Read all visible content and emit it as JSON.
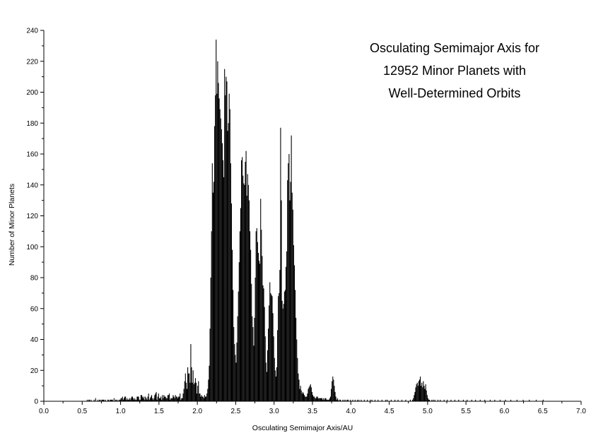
{
  "chart_data": {
    "type": "bar",
    "title_lines": [
      "Osculating Semimajor Axis for",
      "12952 Minor Planets with",
      "Well-Determined Orbits"
    ],
    "xlabel": "Osculating Semimajor Axis/AU",
    "ylabel": "Number of Minor Planets",
    "xlim": [
      0.0,
      7.0
    ],
    "ylim": [
      0,
      240
    ],
    "x_ticks": [
      "0.0",
      "0.5",
      "1.0",
      "1.5",
      "2.0",
      "2.5",
      "3.0",
      "3.5",
      "4.0",
      "4.5",
      "5.0",
      "5.5",
      "6.0",
      "6.5",
      "7.0"
    ],
    "y_ticks": [
      "0",
      "20",
      "40",
      "60",
      "80",
      "100",
      "120",
      "140",
      "160",
      "180",
      "200",
      "220",
      "240"
    ],
    "bin_width": 0.01,
    "x_start": 0.0,
    "counts": [
      0,
      0,
      0,
      0,
      0,
      0,
      0,
      0,
      0,
      0,
      0,
      0,
      0,
      0,
      0,
      0,
      0,
      0,
      0,
      0,
      0,
      0,
      0,
      0,
      0,
      0,
      0,
      0,
      0,
      0,
      0,
      0,
      0,
      0,
      0,
      0,
      0,
      0,
      0,
      0,
      0,
      0,
      0,
      0,
      0,
      0,
      0,
      0,
      0,
      0,
      0,
      0,
      0,
      0,
      0,
      0,
      1,
      0,
      1,
      1,
      0,
      1,
      0,
      0,
      0,
      1,
      0,
      2,
      0,
      0,
      1,
      0,
      1,
      1,
      0,
      1,
      1,
      1,
      1,
      0,
      1,
      0,
      0,
      1,
      1,
      0,
      1,
      1,
      1,
      1,
      0,
      2,
      0,
      1,
      1,
      0,
      1,
      0,
      1,
      1,
      2,
      2,
      3,
      1,
      2,
      3,
      3,
      1,
      2,
      1,
      1,
      2,
      1,
      2,
      3,
      3,
      2,
      1,
      2,
      1,
      1,
      3,
      3,
      3,
      1,
      1,
      4,
      4,
      3,
      2,
      3,
      1,
      3,
      2,
      1,
      3,
      5,
      1,
      2,
      3,
      4,
      2,
      1,
      2,
      4,
      5,
      6,
      1,
      3,
      5,
      2,
      2,
      3,
      1,
      4,
      2,
      4,
      3,
      3,
      2,
      2,
      4,
      4,
      5,
      1,
      2,
      2,
      2,
      4,
      3,
      2,
      4,
      3,
      3,
      2,
      3,
      3,
      5,
      1,
      2,
      2,
      5,
      8,
      13,
      18,
      12,
      8,
      22,
      18,
      18,
      12,
      37,
      22,
      12,
      20,
      11,
      12,
      15,
      12,
      5,
      10,
      13,
      5,
      5,
      3,
      4,
      3,
      3,
      2,
      4,
      3,
      3,
      5,
      8,
      14,
      23,
      47,
      80,
      110,
      154,
      135,
      142,
      178,
      198,
      234,
      199,
      220,
      206,
      196,
      189,
      183,
      176,
      167,
      156,
      145,
      215,
      198,
      210,
      207,
      175,
      180,
      199,
      189,
      154,
      128,
      98,
      72,
      48,
      37,
      30,
      25,
      38,
      55,
      71,
      90,
      110,
      125,
      156,
      158,
      146,
      141,
      140,
      155,
      162,
      133,
      147,
      140,
      130,
      110,
      98,
      76,
      55,
      48,
      36,
      54,
      80,
      110,
      112,
      103,
      96,
      91,
      89,
      131,
      111,
      94,
      75,
      73,
      61,
      42,
      25,
      19,
      33,
      47,
      62,
      77,
      70,
      69,
      68,
      57,
      42,
      28,
      20,
      16,
      22,
      46,
      68,
      70,
      85,
      177,
      130,
      65,
      60,
      63,
      71,
      72,
      87,
      97,
      143,
      154,
      160,
      130,
      142,
      172,
      135,
      124,
      101,
      88,
      72,
      54,
      40,
      28,
      18,
      14,
      8,
      10,
      7,
      5,
      6,
      5,
      4,
      3,
      3,
      3,
      5,
      8,
      9,
      10,
      11,
      9,
      6,
      4,
      3,
      3,
      2,
      2,
      3,
      3,
      2,
      2,
      2,
      2,
      2,
      2,
      1,
      2,
      1,
      2,
      2,
      1,
      1,
      1,
      1,
      2,
      3,
      8,
      13,
      16,
      14,
      10,
      6,
      3,
      1,
      2,
      1,
      0,
      1,
      1,
      0,
      0,
      1,
      0,
      1,
      0,
      1,
      0,
      1,
      1,
      0,
      0,
      1,
      0,
      0,
      1,
      0,
      0,
      1,
      0,
      0,
      1,
      0,
      1,
      0,
      0,
      1,
      0,
      0,
      0,
      1,
      0,
      0,
      0,
      1,
      0,
      0,
      0,
      1,
      0,
      1,
      0,
      0,
      0,
      1,
      0,
      0,
      0,
      1,
      0,
      0,
      0,
      0,
      1,
      0,
      0,
      0,
      0,
      1,
      0,
      1,
      0,
      0,
      0,
      0,
      1,
      0,
      0,
      0,
      0,
      1,
      0,
      0,
      0,
      1,
      0,
      0,
      0,
      0,
      1,
      0,
      0,
      0,
      0,
      1,
      0,
      0,
      0,
      0,
      0,
      1,
      0,
      0,
      1,
      2,
      4,
      6,
      9,
      11,
      12,
      10,
      13,
      14,
      16,
      10,
      12,
      9,
      13,
      10,
      8,
      11,
      7,
      4,
      2,
      1,
      1,
      0,
      0,
      1,
      0,
      1,
      0,
      1,
      0,
      0,
      0,
      1,
      0,
      0,
      1,
      0,
      0,
      0,
      0,
      1,
      0,
      0,
      0,
      1,
      0,
      0,
      0,
      0,
      1,
      0,
      0,
      0,
      0,
      1,
      0,
      0,
      0,
      0,
      1,
      0,
      0,
      0,
      0,
      0,
      1,
      0,
      0,
      0,
      0,
      1,
      0,
      0,
      0,
      0,
      0,
      1,
      0,
      0,
      0,
      0,
      1,
      0,
      0,
      0,
      0,
      0,
      1,
      0,
      0,
      0,
      0,
      0,
      1,
      0,
      0,
      0,
      0,
      0,
      0,
      1,
      0,
      0,
      0,
      0,
      0,
      1,
      0,
      0,
      0,
      0,
      0,
      0,
      1,
      0,
      0,
      0,
      0,
      0,
      0,
      1,
      0,
      0,
      0,
      0,
      0,
      0,
      1,
      0,
      0,
      0,
      0,
      0,
      0,
      0,
      1,
      0,
      0,
      0,
      0,
      0,
      0,
      0,
      1,
      0,
      0,
      0,
      0,
      0,
      0,
      0,
      1,
      0,
      0,
      0,
      0,
      0,
      0,
      0,
      0,
      1,
      0,
      0,
      0,
      0,
      0,
      0,
      0,
      0,
      1,
      0,
      0,
      0,
      0,
      0,
      0,
      0
    ],
    "grid": false,
    "legend": "none",
    "bar_color": "#000000"
  }
}
